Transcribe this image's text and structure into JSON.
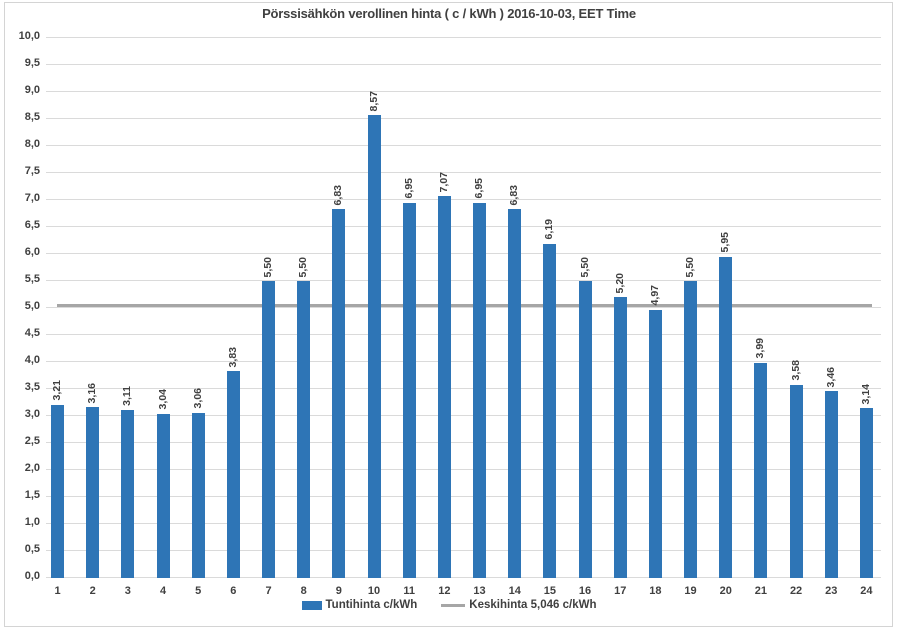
{
  "chart_data": {
    "type": "bar",
    "title": "Pörssisähkön verollinen hinta ( c / kWh ) 2016-10-03, EET Time",
    "xlabel": "",
    "ylabel": "",
    "ylim": [
      0,
      10
    ],
    "ytick_step": 0.5,
    "ytick_labels": [
      "0,0",
      "0,5",
      "1,0",
      "1,5",
      "2,0",
      "2,5",
      "3,0",
      "3,5",
      "4,0",
      "4,5",
      "5,0",
      "5,5",
      "6,0",
      "6,5",
      "7,0",
      "7,5",
      "8,0",
      "8,5",
      "9,0",
      "9,5",
      "10,0"
    ],
    "grid": true,
    "legend_position": "bottom",
    "categories": [
      "1",
      "2",
      "3",
      "4",
      "5",
      "6",
      "7",
      "8",
      "9",
      "10",
      "11",
      "12",
      "13",
      "14",
      "15",
      "16",
      "17",
      "18",
      "19",
      "20",
      "21",
      "22",
      "23",
      "24"
    ],
    "series": [
      {
        "name": "Tuntihinta c/kWh",
        "type": "bar",
        "color": "#2E75B6",
        "values": [
          3.21,
          3.16,
          3.11,
          3.04,
          3.06,
          3.83,
          5.5,
          5.5,
          6.83,
          8.57,
          6.95,
          7.07,
          6.95,
          6.83,
          6.19,
          5.5,
          5.2,
          4.97,
          5.5,
          5.95,
          3.99,
          3.58,
          3.46,
          3.14
        ],
        "value_labels": [
          "3,21",
          "3,16",
          "3,11",
          "3,04",
          "3,06",
          "3,83",
          "5,50",
          "5,50",
          "6,83",
          "8,57",
          "6,95",
          "7,07",
          "6,95",
          "6,83",
          "6,19",
          "5,50",
          "5,20",
          "4,97",
          "5,50",
          "5,95",
          "3,99",
          "3,58",
          "3,46",
          "3,14"
        ]
      },
      {
        "name": "Keskihinta 5,046 c/kWh",
        "type": "line",
        "color": "#A6A6A6",
        "value": 5.046
      }
    ],
    "colors": {
      "text": "#404040",
      "gridline": "#DADADA",
      "bar": "#2E75B6",
      "average_line": "#A6A6A6"
    }
  }
}
